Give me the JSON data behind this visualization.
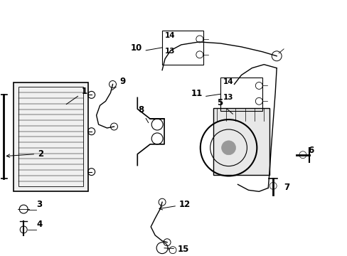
{
  "bg_color": "#ffffff",
  "line_color": "#000000",
  "gray_fill": "#e8e8e8",
  "light_gray": "#f0f0f0"
}
